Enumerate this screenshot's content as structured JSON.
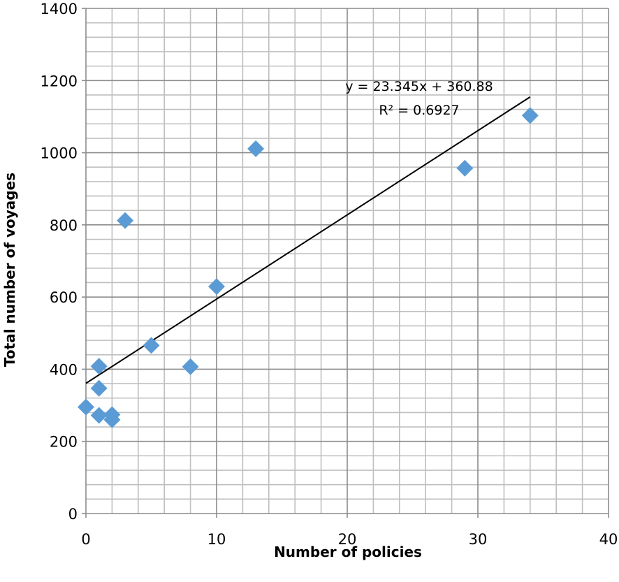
{
  "chart_data": {
    "type": "scatter",
    "xlabel": "Number of policies",
    "ylabel": "Total number of voyages",
    "xlim": [
      0,
      40
    ],
    "ylim": [
      0,
      1400
    ],
    "x_ticks": [
      0,
      10,
      20,
      30,
      40
    ],
    "y_ticks": [
      0,
      200,
      400,
      600,
      800,
      1000,
      1200,
      1400
    ],
    "x_minor_step": 2,
    "y_minor_step": 40,
    "grid": true,
    "legend": "none",
    "marker": "diamond",
    "marker_color": "#5b9bd5",
    "points": [
      {
        "x": 0,
        "y": 295
      },
      {
        "x": 1,
        "y": 408
      },
      {
        "x": 1,
        "y": 347
      },
      {
        "x": 1,
        "y": 272
      },
      {
        "x": 2,
        "y": 274
      },
      {
        "x": 2,
        "y": 260
      },
      {
        "x": 3,
        "y": 812
      },
      {
        "x": 5,
        "y": 466
      },
      {
        "x": 8,
        "y": 407
      },
      {
        "x": 10,
        "y": 629
      },
      {
        "x": 13,
        "y": 1011
      },
      {
        "x": 29,
        "y": 957
      },
      {
        "x": 34,
        "y": 1103
      }
    ],
    "trendline": {
      "type": "linear",
      "slope": 23.345,
      "intercept": 360.88,
      "x_range": [
        0,
        34
      ],
      "equation_label": "y = 23.345x + 360.88",
      "r2_label": "R² = 0.6927"
    }
  }
}
